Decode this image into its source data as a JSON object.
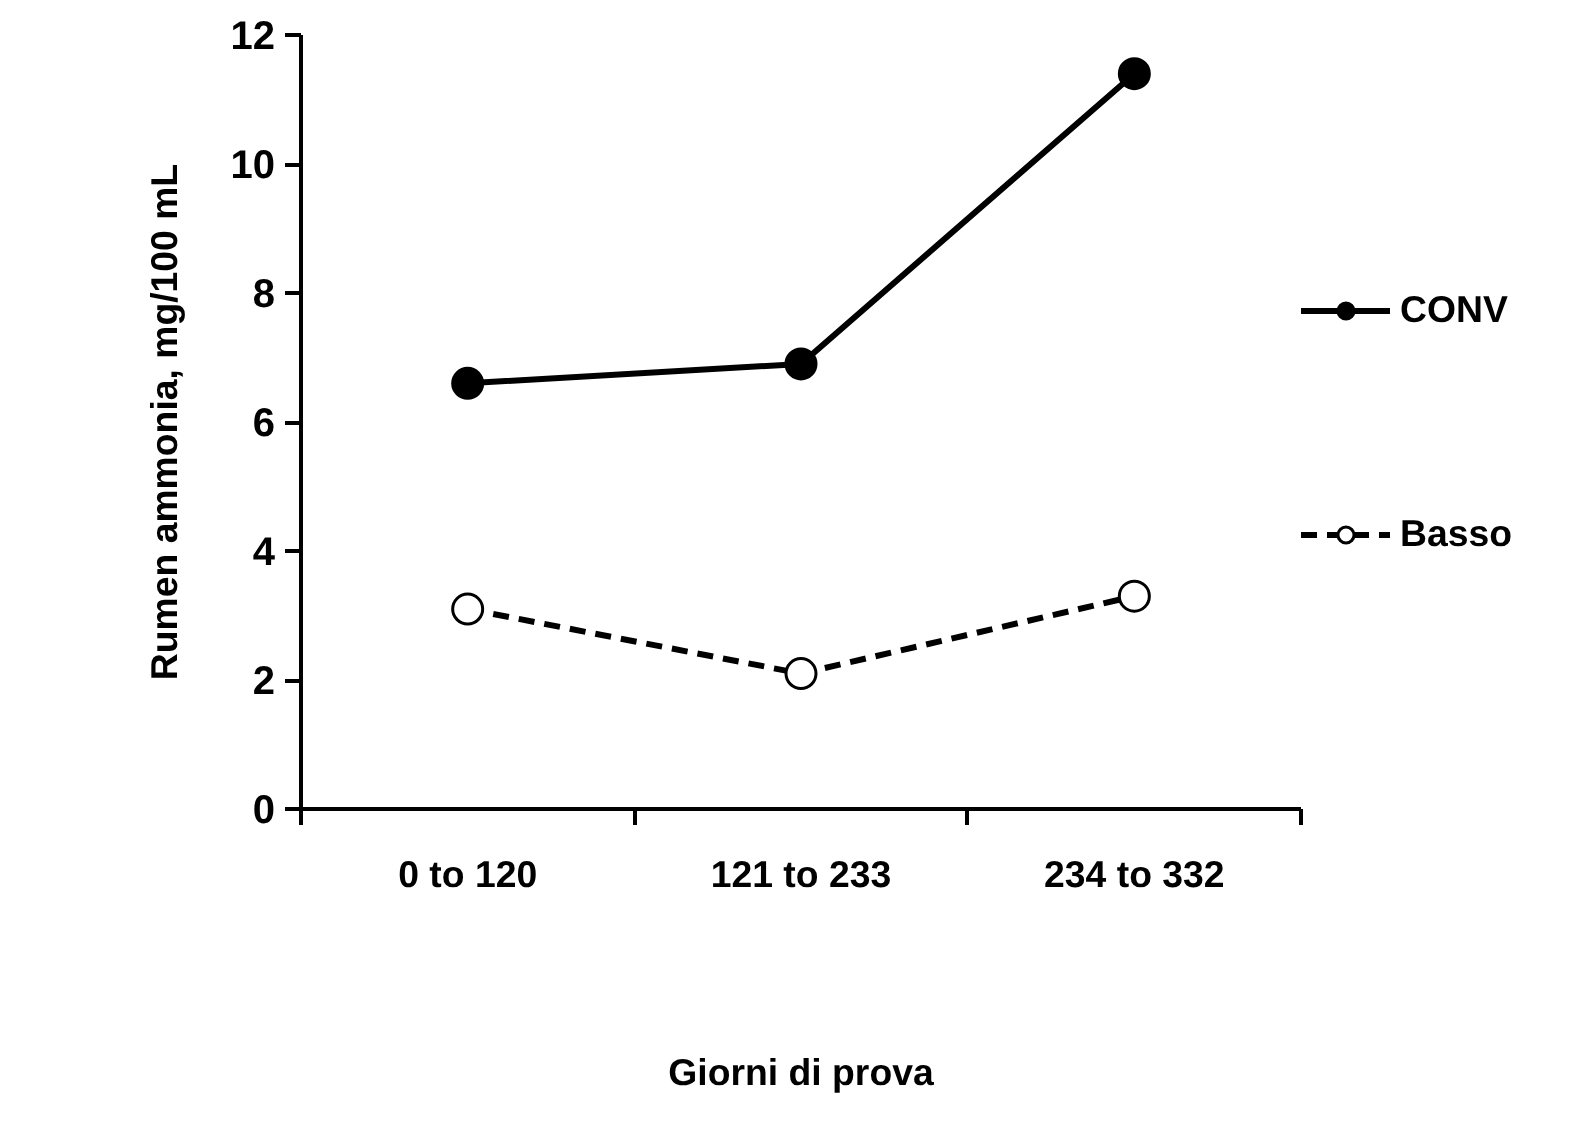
{
  "chart_data": {
    "type": "line",
    "xlabel": "Giorni di prova",
    "ylabel": "Rumen ammonia, mg/100 mL",
    "categories": [
      "0 to 120",
      "121 to 233",
      "234 to 332"
    ],
    "series": [
      {
        "name": "CONV",
        "color": "#000000",
        "values": [
          6.6,
          6.9,
          11.4
        ],
        "marker": "circle",
        "line_style": "solid"
      },
      {
        "name": "Basso",
        "color": "#000000",
        "values": [
          3.1,
          2.1,
          3.3
        ],
        "marker": "circle",
        "line_style": "dashed"
      }
    ],
    "ylim": [
      0,
      12
    ],
    "yticks": [
      0,
      2,
      4,
      6,
      8,
      10,
      12
    ],
    "grid": false,
    "legend": "right"
  }
}
